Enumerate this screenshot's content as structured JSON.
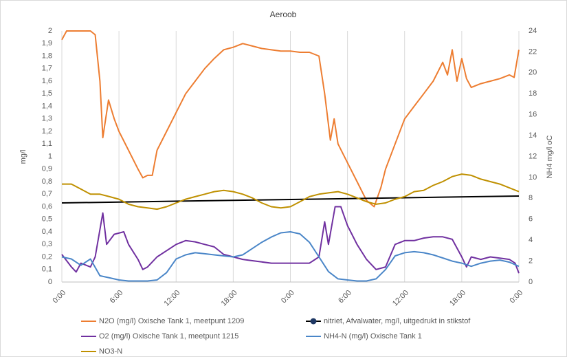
{
  "chart_data": {
    "type": "line",
    "title": "Aeroob",
    "ylabel": "mg/l",
    "y2label": "NH4 mg/l oC",
    "grid": "x",
    "xlim": [
      0,
      48
    ],
    "xticks": [
      {
        "value": 0,
        "label": "0:00"
      },
      {
        "value": 6,
        "label": "6:00"
      },
      {
        "value": 12,
        "label": "12:00"
      },
      {
        "value": 18,
        "label": "18:00"
      },
      {
        "value": 24,
        "label": "0:00"
      },
      {
        "value": 30,
        "label": "6:00"
      },
      {
        "value": 36,
        "label": "12:00"
      },
      {
        "value": 42,
        "label": "18:00"
      },
      {
        "value": 48,
        "label": "0:00"
      }
    ],
    "ylim": [
      0,
      2
    ],
    "yticks": [
      0,
      {
        "value": 0.1,
        "label": "0,1"
      },
      {
        "value": 0.2,
        "label": "0,2"
      },
      {
        "value": 0.3,
        "label": "0,3"
      },
      {
        "value": 0.4,
        "label": "0,4"
      },
      {
        "value": 0.5,
        "label": "0,5"
      },
      {
        "value": 0.6,
        "label": "0,6"
      },
      {
        "value": 0.7,
        "label": "0,7"
      },
      {
        "value": 0.8,
        "label": "0,8"
      },
      {
        "value": 0.9,
        "label": "0,9"
      },
      1,
      {
        "value": 1.1,
        "label": "1,1"
      },
      {
        "value": 1.2,
        "label": "1,2"
      },
      {
        "value": 1.3,
        "label": "1,3"
      },
      {
        "value": 1.4,
        "label": "1,4"
      },
      {
        "value": 1.5,
        "label": "1,5"
      },
      {
        "value": 1.6,
        "label": "1,6"
      },
      {
        "value": 1.7,
        "label": "1,7"
      },
      {
        "value": 1.8,
        "label": "1,8"
      },
      {
        "value": 1.9,
        "label": "1,9"
      },
      2
    ],
    "y2lim": [
      0,
      24
    ],
    "y2ticks": [
      0,
      2,
      4,
      6,
      8,
      10,
      12,
      14,
      16,
      18,
      20,
      22,
      24
    ],
    "series": [
      {
        "name": "N2O (mg/l) Oxische Tank 1, meetpunt 1209",
        "color": "#ed7d31",
        "x": [
          0,
          0.5,
          3,
          3.5,
          4,
          4.3,
          4.9,
          5.5,
          6,
          7,
          8,
          8.5,
          9,
          9.5,
          10,
          11,
          12,
          13,
          14,
          15,
          16,
          17,
          18,
          19,
          20,
          21,
          22,
          23,
          24,
          25,
          26,
          27,
          27.6,
          28.2,
          28.6,
          29,
          30,
          31,
          32,
          32.8,
          33.5,
          34,
          35,
          36,
          37,
          38,
          39,
          40,
          40.5,
          41,
          41.5,
          42,
          42.5,
          43,
          44,
          45,
          46,
          47,
          47.5,
          48
        ],
        "values": [
          1.93,
          2.0,
          2.0,
          1.97,
          1.6,
          1.15,
          1.45,
          1.3,
          1.2,
          1.05,
          0.9,
          0.83,
          0.85,
          0.85,
          1.05,
          1.2,
          1.35,
          1.5,
          1.6,
          1.7,
          1.78,
          1.85,
          1.87,
          1.9,
          1.88,
          1.86,
          1.85,
          1.84,
          1.84,
          1.83,
          1.83,
          1.8,
          1.5,
          1.13,
          1.3,
          1.1,
          0.95,
          0.8,
          0.65,
          0.6,
          0.75,
          0.9,
          1.1,
          1.3,
          1.4,
          1.5,
          1.6,
          1.75,
          1.65,
          1.85,
          1.6,
          1.78,
          1.62,
          1.55,
          1.58,
          1.6,
          1.62,
          1.65,
          1.63,
          1.85
        ]
      },
      {
        "name": "nitriet, Afvalwater, mg/l, uitgedrukt in stikstof",
        "color": "#000000",
        "legend_marker": true,
        "x": [
          0,
          48
        ],
        "values": [
          0.63,
          0.685
        ]
      },
      {
        "name": "O2 (mg/l) Oxische Tank 1, meetpunt 1215",
        "color": "#7030a0",
        "x": [
          0,
          1,
          1.5,
          2,
          3,
          3.5,
          4.3,
          4.7,
          5.5,
          6.5,
          7,
          8,
          8.5,
          9,
          10,
          11,
          12,
          13,
          14,
          15,
          16,
          17,
          18,
          19,
          20,
          21,
          22,
          23,
          24,
          25,
          26,
          27,
          27.6,
          28,
          28.7,
          29.3,
          30,
          31,
          32,
          33,
          34,
          35,
          36,
          37,
          38,
          39,
          40,
          41,
          42,
          42.5,
          43,
          44,
          45,
          46,
          47,
          47.6,
          48
        ],
        "values": [
          0.22,
          0.12,
          0.08,
          0.15,
          0.12,
          0.2,
          0.55,
          0.3,
          0.38,
          0.4,
          0.3,
          0.18,
          0.1,
          0.12,
          0.2,
          0.25,
          0.3,
          0.33,
          0.32,
          0.3,
          0.28,
          0.22,
          0.2,
          0.18,
          0.17,
          0.16,
          0.15,
          0.15,
          0.15,
          0.15,
          0.15,
          0.2,
          0.48,
          0.3,
          0.6,
          0.6,
          0.45,
          0.3,
          0.18,
          0.1,
          0.12,
          0.3,
          0.33,
          0.33,
          0.35,
          0.36,
          0.36,
          0.34,
          0.2,
          0.12,
          0.2,
          0.18,
          0.2,
          0.19,
          0.18,
          0.15,
          0.07
        ]
      },
      {
        "name": "NH4-N (mg/l) Oxische Tank 1",
        "color": "#4a86c8",
        "axis": "y2",
        "x": [
          0,
          1,
          2,
          3,
          4,
          5,
          6,
          7,
          8,
          9,
          10,
          11,
          12,
          13,
          14,
          15,
          16,
          17,
          18,
          19,
          20,
          21,
          22,
          23,
          24,
          25,
          26,
          27,
          28,
          29,
          30,
          31,
          32,
          33,
          34,
          35,
          36,
          37,
          38,
          39,
          40,
          41,
          42,
          43,
          44,
          45,
          46,
          47,
          48
        ],
        "values": [
          2.4,
          2.2,
          1.6,
          2.2,
          0.6,
          0.4,
          0.2,
          0.1,
          0.1,
          0.1,
          0.2,
          0.9,
          2.2,
          2.6,
          2.8,
          2.7,
          2.6,
          2.5,
          2.4,
          2.6,
          3.2,
          3.8,
          4.3,
          4.7,
          4.8,
          4.6,
          3.8,
          2.4,
          1.0,
          0.3,
          0.2,
          0.1,
          0.1,
          0.3,
          1.2,
          2.5,
          2.8,
          2.9,
          2.8,
          2.6,
          2.3,
          2.0,
          1.8,
          1.5,
          1.8,
          2.0,
          2.1,
          1.9,
          1.5
        ]
      },
      {
        "name": "NO3-N",
        "color": "#bf9000",
        "x": [
          0,
          1,
          2,
          3,
          4,
          5,
          6,
          7,
          8,
          9,
          10,
          11,
          12,
          13,
          14,
          15,
          16,
          17,
          18,
          19,
          20,
          21,
          22,
          23,
          24,
          25,
          26,
          27,
          28,
          29,
          30,
          31,
          32,
          33,
          34,
          35,
          36,
          37,
          38,
          39,
          40,
          41,
          42,
          43,
          44,
          45,
          46,
          47,
          48
        ],
        "values": [
          0.78,
          0.78,
          0.74,
          0.7,
          0.7,
          0.68,
          0.66,
          0.62,
          0.6,
          0.59,
          0.58,
          0.6,
          0.63,
          0.66,
          0.68,
          0.7,
          0.72,
          0.73,
          0.72,
          0.7,
          0.67,
          0.63,
          0.6,
          0.59,
          0.6,
          0.64,
          0.68,
          0.7,
          0.71,
          0.72,
          0.7,
          0.67,
          0.64,
          0.62,
          0.63,
          0.66,
          0.68,
          0.72,
          0.73,
          0.77,
          0.8,
          0.84,
          0.86,
          0.85,
          0.82,
          0.8,
          0.78,
          0.75,
          0.72
        ]
      }
    ]
  }
}
